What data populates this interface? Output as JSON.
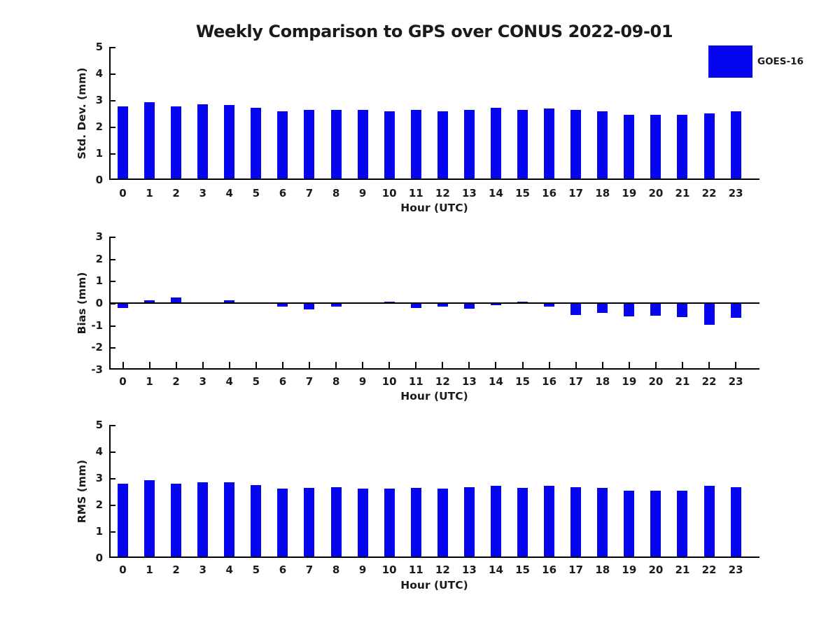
{
  "title": "Weekly Comparison to GPS over CONUS 2022-09-01",
  "legend": {
    "label": "GOES-16",
    "color": "#0505f0",
    "position": "top-right"
  },
  "chart_data": [
    {
      "type": "bar",
      "series_name": "GOES-16",
      "ylabel": "Std. Dev. (mm)",
      "xlabel": "Hour (UTC)",
      "categories": [
        "0",
        "1",
        "2",
        "3",
        "4",
        "5",
        "6",
        "7",
        "8",
        "9",
        "10",
        "11",
        "12",
        "13",
        "14",
        "15",
        "16",
        "17",
        "18",
        "19",
        "20",
        "21",
        "22",
        "23"
      ],
      "values": [
        2.77,
        2.93,
        2.77,
        2.85,
        2.82,
        2.72,
        2.59,
        2.62,
        2.64,
        2.62,
        2.59,
        2.62,
        2.59,
        2.64,
        2.71,
        2.62,
        2.68,
        2.63,
        2.59,
        2.46,
        2.46,
        2.46,
        2.49,
        2.57
      ],
      "ylim": [
        0,
        5
      ],
      "yticks": [
        0,
        1,
        2,
        3,
        4,
        5
      ],
      "grid": false,
      "bar_color": "#0505f0"
    },
    {
      "type": "bar",
      "series_name": "GOES-16",
      "ylabel": "Bias (mm)",
      "xlabel": "Hour (UTC)",
      "categories": [
        "0",
        "1",
        "2",
        "3",
        "4",
        "5",
        "6",
        "7",
        "8",
        "9",
        "10",
        "11",
        "12",
        "13",
        "14",
        "15",
        "16",
        "17",
        "18",
        "19",
        "20",
        "21",
        "22",
        "23"
      ],
      "values": [
        -0.22,
        0.14,
        0.24,
        0.0,
        0.14,
        -0.02,
        -0.15,
        -0.28,
        -0.15,
        -0.02,
        0.07,
        -0.22,
        -0.15,
        -0.25,
        -0.08,
        0.05,
        -0.17,
        -0.54,
        -0.44,
        -0.61,
        -0.57,
        -0.63,
        -0.97,
        -0.65
      ],
      "ylim": [
        -3,
        3
      ],
      "yticks": [
        -3,
        -2,
        -1,
        0,
        1,
        2,
        3
      ],
      "grid": false,
      "zero_line": true,
      "bar_color": "#0505f0"
    },
    {
      "type": "bar",
      "series_name": "GOES-16",
      "ylabel": "RMS (mm)",
      "xlabel": "Hour (UTC)",
      "categories": [
        "0",
        "1",
        "2",
        "3",
        "4",
        "5",
        "6",
        "7",
        "8",
        "9",
        "10",
        "11",
        "12",
        "13",
        "14",
        "15",
        "16",
        "17",
        "18",
        "19",
        "20",
        "21",
        "22",
        "23"
      ],
      "values": [
        2.78,
        2.93,
        2.78,
        2.83,
        2.83,
        2.73,
        2.61,
        2.63,
        2.65,
        2.61,
        2.61,
        2.64,
        2.61,
        2.66,
        2.72,
        2.62,
        2.7,
        2.67,
        2.63,
        2.53,
        2.53,
        2.53,
        2.7,
        2.66
      ],
      "ylim": [
        0,
        5
      ],
      "yticks": [
        0,
        1,
        2,
        3,
        4,
        5
      ],
      "grid": false,
      "bar_color": "#0505f0"
    }
  ]
}
